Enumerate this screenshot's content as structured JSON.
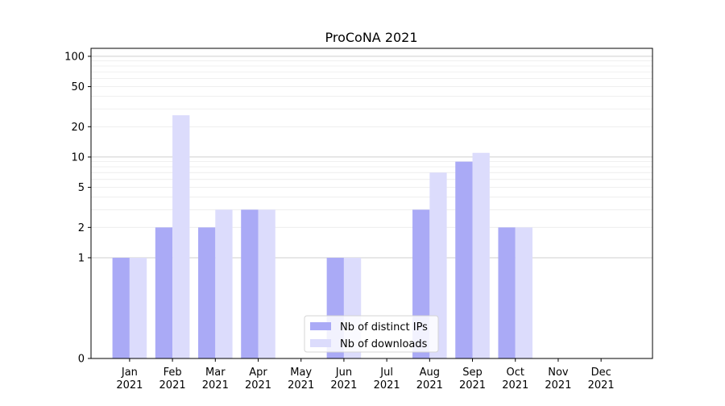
{
  "chart_data": {
    "type": "bar",
    "title": "ProCoNA 2021",
    "xlabel": "",
    "ylabel": "",
    "y_scale": "symlog",
    "y_ticks": [
      0,
      1,
      2,
      5,
      10,
      20,
      50,
      100
    ],
    "y_tick_labels": [
      "0",
      "1",
      "2",
      "5",
      "10",
      "20",
      "50",
      "100"
    ],
    "ylim": [
      0,
      120
    ],
    "grid": true,
    "legend_position": "bottom-center",
    "categories": [
      {
        "month": "Jan",
        "year": "2021"
      },
      {
        "month": "Feb",
        "year": "2021"
      },
      {
        "month": "Mar",
        "year": "2021"
      },
      {
        "month": "Apr",
        "year": "2021"
      },
      {
        "month": "May",
        "year": "2021"
      },
      {
        "month": "Jun",
        "year": "2021"
      },
      {
        "month": "Jul",
        "year": "2021"
      },
      {
        "month": "Aug",
        "year": "2021"
      },
      {
        "month": "Sep",
        "year": "2021"
      },
      {
        "month": "Oct",
        "year": "2021"
      },
      {
        "month": "Nov",
        "year": "2021"
      },
      {
        "month": "Dec",
        "year": "2021"
      }
    ],
    "series": [
      {
        "name": "Nb of distinct IPs",
        "color": "#aaaaf6",
        "values": [
          1,
          2,
          2,
          3,
          0,
          1,
          0,
          3,
          9,
          2,
          0,
          0
        ]
      },
      {
        "name": "Nb of downloads",
        "color": "#dcdcfc",
        "values": [
          1,
          26,
          3,
          3,
          0,
          1,
          0,
          7,
          11,
          2,
          0,
          0
        ]
      }
    ]
  }
}
